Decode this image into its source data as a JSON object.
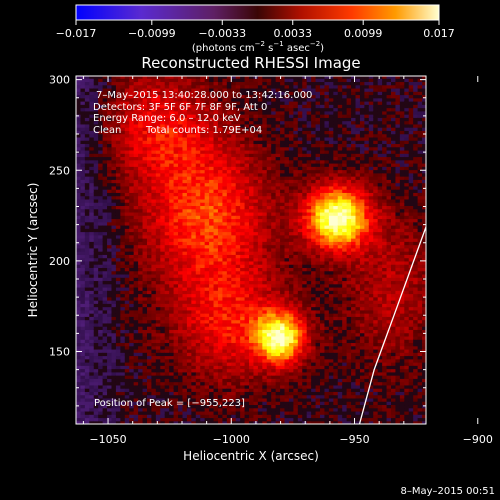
{
  "chart_data": {
    "type": "heatmap",
    "title": "Reconstructed RHESSI Image",
    "xlabel": "Heliocentric X (arcsec)",
    "ylabel": "Heliocentric Y (arcsec)",
    "xlim": [
      -1063,
      -921
    ],
    "ylim": [
      110,
      302
    ],
    "x_ticks": [
      -1050,
      -1000,
      -950,
      -900
    ],
    "x_tick_labels": [
      "−1050",
      "−1000",
      "−950",
      "−900"
    ],
    "y_ticks": [
      150,
      200,
      250,
      300
    ],
    "y_tick_labels": [
      "150",
      "200",
      "250",
      "300"
    ],
    "colorbar": {
      "colormap": "hot",
      "min": -0.017,
      "max": 0.017,
      "ticks": [
        -0.017,
        -0.0099,
        -0.0033,
        0.0033,
        0.0099,
        0.017
      ],
      "tick_labels": [
        "−0.017",
        "−0.0099",
        "−0.0033",
        "0.0033",
        "0.0099",
        "0.017"
      ],
      "label_text": "(photons cm",
      "label_exp1": "−2",
      "label_mid": " s",
      "label_exp2": "−1",
      "label_mid2": " asec",
      "label_exp3": "−2",
      "label_end": ")"
    },
    "sources": [
      {
        "x": -957,
        "y": 224,
        "peak": 0.017,
        "sigma_x": 9,
        "sigma_y": 12
      },
      {
        "x": -980,
        "y": 158,
        "peak": 0.0145,
        "sigma_x": 7,
        "sigma_y": 10
      },
      {
        "x": -1010,
        "y": 225,
        "peak": 0.0085,
        "sigma_x": 18,
        "sigma_y": 28
      },
      {
        "x": -1030,
        "y": 275,
        "peak": 0.006,
        "sigma_x": 16,
        "sigma_y": 22
      },
      {
        "x": -1000,
        "y": 165,
        "peak": 0.0065,
        "sigma_x": 16,
        "sigma_y": 22
      },
      {
        "x": -935,
        "y": 185,
        "peak": 0.004,
        "sigma_x": 14,
        "sigma_y": 30
      }
    ],
    "limb_curve": [
      [
        -948,
        110
      ],
      [
        -942,
        140
      ],
      [
        -934,
        170
      ],
      [
        -926,
        200
      ],
      [
        -918,
        230
      ],
      [
        -909,
        260
      ],
      [
        -900,
        290
      ],
      [
        -895,
        302
      ]
    ],
    "annotations": {
      "time_range": "7–May–2015 13:40:28.000 to 13:42:16.000",
      "detectors": "Detectors: 3F 5F 6F 7F 8F 9F, Att 0",
      "energy": "Energy Range: 6.0 – 12.0 keV",
      "clean_label": "Clean",
      "total_counts": "Total counts: 1.79E+04",
      "peak_position": "Position of Peak = [−955,223]"
    },
    "footer_date": "8–May–2015 00:51"
  }
}
